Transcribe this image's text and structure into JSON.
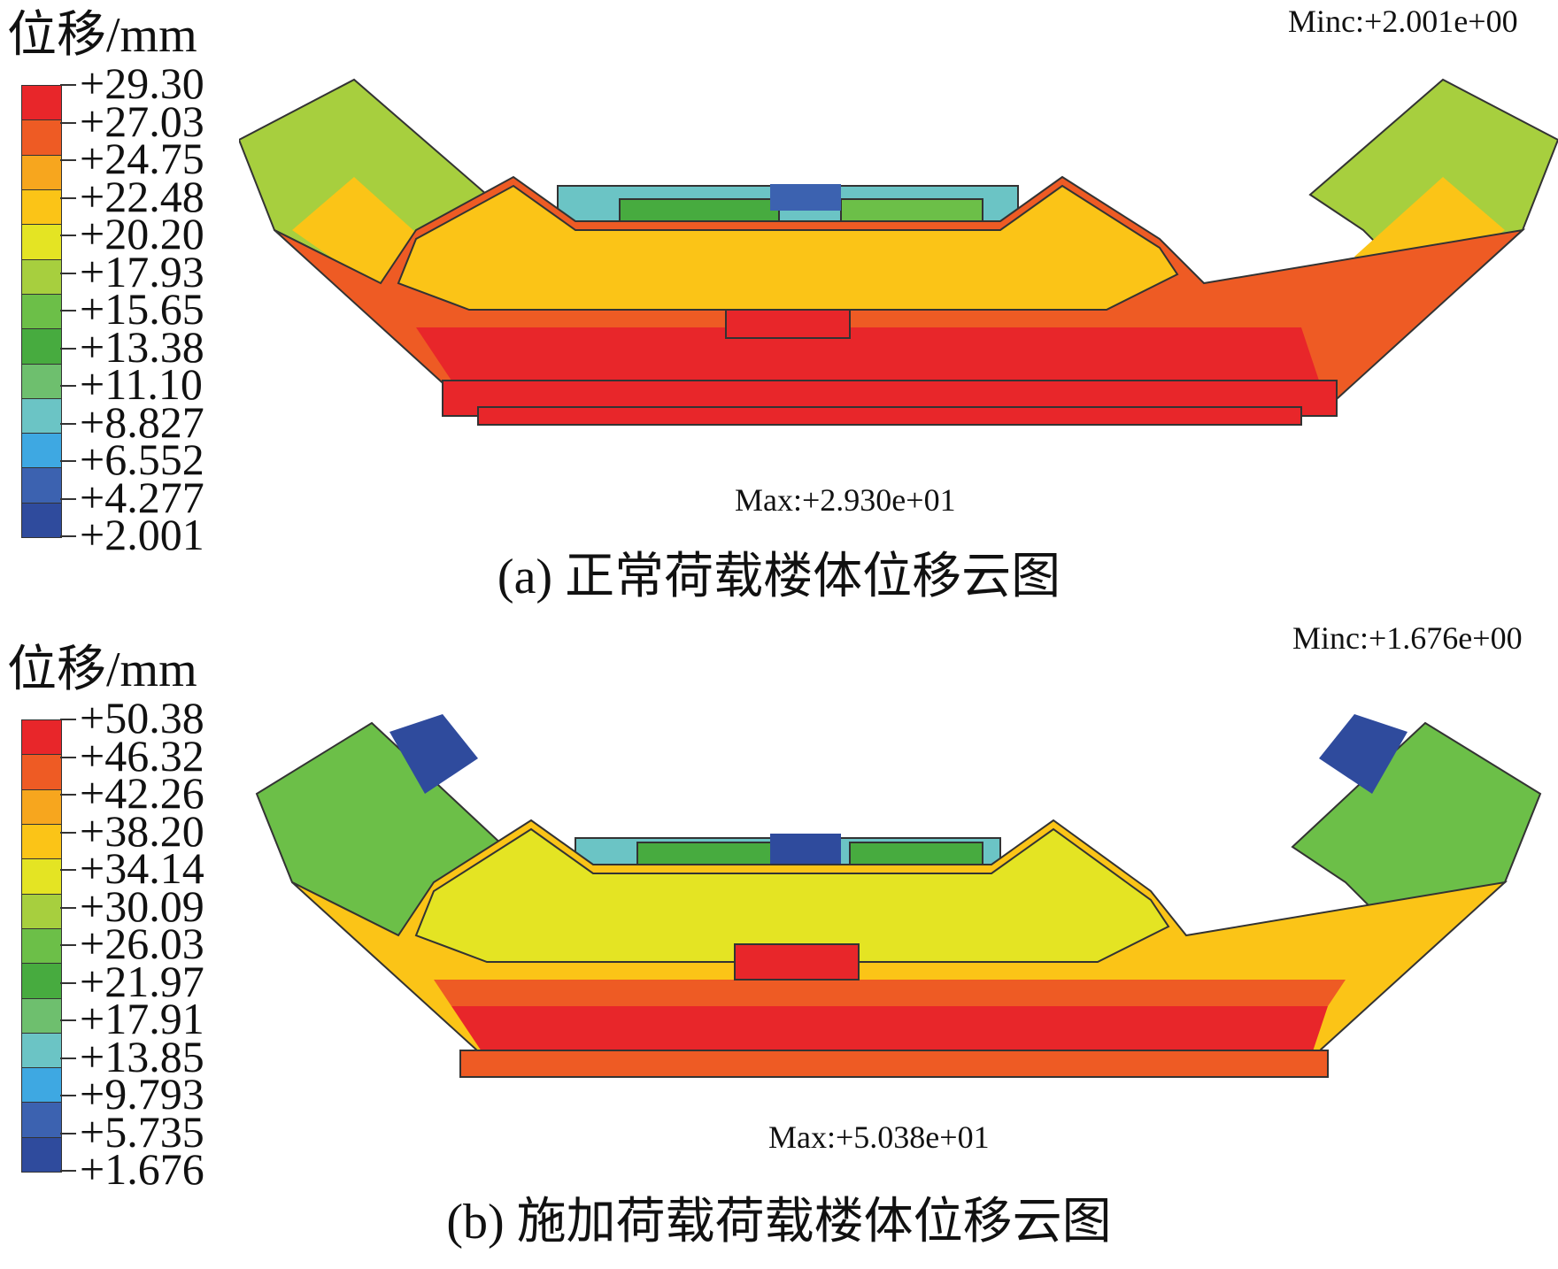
{
  "panels": [
    {
      "id": "a",
      "unit_label": "位移/mm",
      "legend": [
        "+29.30",
        "+27.03",
        "+24.75",
        "+22.48",
        "+20.20",
        "+17.93",
        "+15.65",
        "+13.38",
        "+11.10",
        "+8.827",
        "+6.552",
        "+4.277",
        "+2.001"
      ],
      "min_label": "Minc:+2.001e+00",
      "max_label": "Max:+2.930e+01",
      "caption": "(a) 正常荷载楼体位移云图"
    },
    {
      "id": "b",
      "unit_label": "位移/mm",
      "legend": [
        "+50.38",
        "+46.32",
        "+42.26",
        "+38.20",
        "+34.14",
        "+30.09",
        "+26.03",
        "+21.97",
        "+17.91",
        "+13.85",
        "+9.793",
        "+5.735",
        "+1.676"
      ],
      "min_label": "Minc:+1.676e+00",
      "max_label": "Max:+5.038e+01",
      "caption": "(b) 施加荷载荷载楼体位移云图"
    }
  ],
  "colormap": [
    "#e8262a",
    "#ee5b24",
    "#f7a61e",
    "#fbc417",
    "#e4e423",
    "#a7cf3e",
    "#6cbf48",
    "#47ab3f",
    "#6ebf6e",
    "#6bc4c5",
    "#3ea8e2",
    "#3c62b0",
    "#2f4b9d"
  ]
}
